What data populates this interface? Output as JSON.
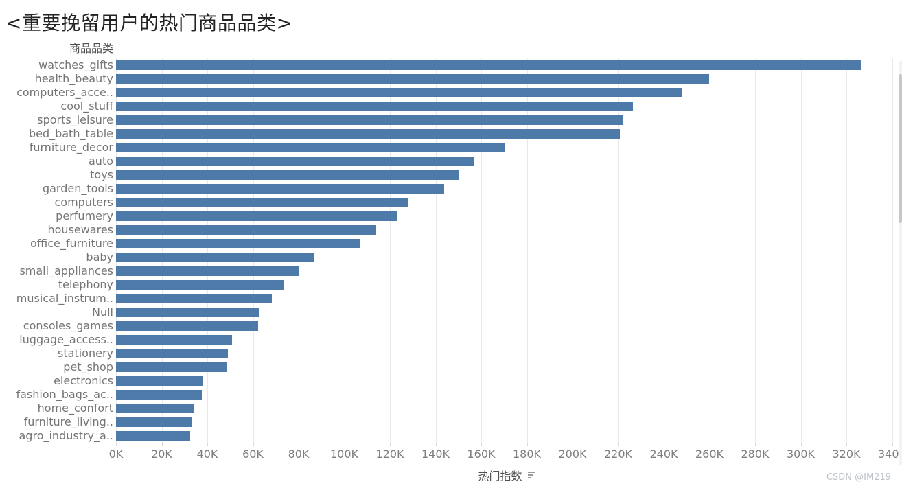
{
  "watermark": "CSDN @IM219",
  "chart_data": {
    "type": "bar",
    "orientation": "horizontal",
    "title": "<重要挽留用户的热门商品品类>",
    "ylabel_header": "商品品类",
    "xlabel": "热门指数",
    "sort": "descending",
    "grid": true,
    "legend": "none",
    "xlim_k": [
      0,
      340
    ],
    "xticks_k": [
      0,
      20,
      40,
      60,
      80,
      100,
      120,
      140,
      160,
      180,
      200,
      220,
      240,
      260,
      280,
      300,
      320,
      340
    ],
    "xtick_labels": [
      "0K",
      "20K",
      "40K",
      "60K",
      "80K",
      "100K",
      "120K",
      "140K",
      "160K",
      "180K",
      "200K",
      "220K",
      "240K",
      "260K",
      "280K",
      "300K",
      "320K",
      "340K"
    ],
    "categories": [
      "watches_gifts",
      "health_beauty",
      "computers_acce..",
      "cool_stuff",
      "sports_leisure",
      "bed_bath_table",
      "furniture_decor",
      "auto",
      "toys",
      "garden_tools",
      "computers",
      "perfumery",
      "housewares",
      "office_furniture",
      "baby",
      "small_appliances",
      "telephony",
      "musical_instrum..",
      "Null",
      "consoles_games",
      "luggage_access..",
      "stationery",
      "pet_shop",
      "electronics",
      "fashion_bags_ac..",
      "home_confort",
      "furniture_living..",
      "agro_industry_a.."
    ],
    "values_k": [
      326.3,
      259.7,
      247.8,
      226.5,
      222.0,
      220.8,
      170.4,
      157.1,
      150.3,
      143.9,
      127.9,
      123.0,
      114.1,
      106.9,
      86.8,
      80.4,
      73.5,
      68.3,
      63.0,
      62.2,
      50.7,
      48.9,
      48.3,
      38.0,
      37.7,
      34.3,
      33.5,
      32.6
    ],
    "bar_color": "#4d7aa8"
  }
}
